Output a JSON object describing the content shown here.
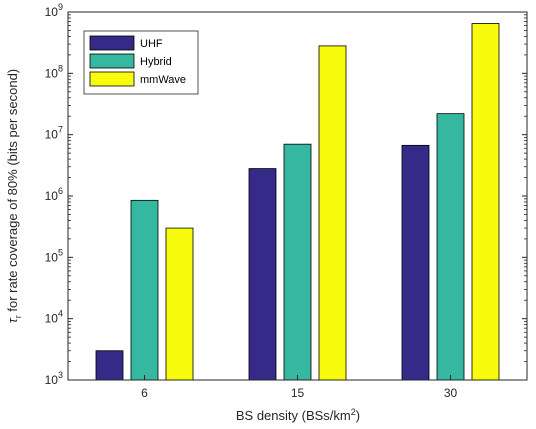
{
  "chart_data": {
    "type": "bar",
    "categories": [
      "6",
      "15",
      "30"
    ],
    "series": [
      {
        "name": "UHF",
        "values": [
          3000,
          2800000,
          6700000
        ],
        "color": "#352a87"
      },
      {
        "name": "Hybrid",
        "values": [
          850000,
          7000000,
          22000000
        ],
        "color": "#36b8a0"
      },
      {
        "name": "mmWave",
        "values": [
          300000,
          280000000,
          650000000
        ],
        "color": "#f9fb0e"
      }
    ],
    "yscale": "log",
    "ylim": [
      1000,
      1000000000
    ],
    "y_ticks": [
      {
        "base": "10",
        "exp": "3"
      },
      {
        "base": "10",
        "exp": "4"
      },
      {
        "base": "10",
        "exp": "5"
      },
      {
        "base": "10",
        "exp": "6"
      },
      {
        "base": "10",
        "exp": "7"
      },
      {
        "base": "10",
        "exp": "8"
      },
      {
        "base": "10",
        "exp": "9"
      }
    ],
    "xlabel": {
      "text": "BS density (BSs/km",
      "sup": "2",
      "suffix": ")"
    },
    "ylabel": {
      "symbol": "τ",
      "sub": "r",
      "text": " for rate coverage of 80% (bits per second)"
    },
    "legend_position": "top-left",
    "grid": false
  }
}
